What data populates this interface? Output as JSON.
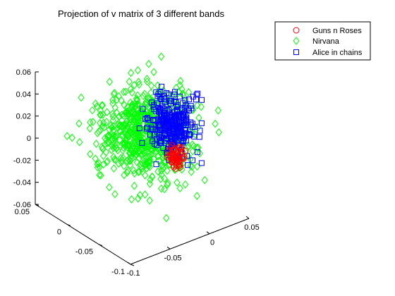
{
  "chart_data": {
    "type": "scatter",
    "title": "Projection of v matrix of 3 different bands",
    "xlabel": "",
    "ylabel": "",
    "zlabel": "",
    "z_ticks": [
      "0.06",
      "0.04",
      "0.02",
      "0",
      "-0.02",
      "-0.04",
      "-0.06"
    ],
    "y_ticks": [
      "0.05",
      "0",
      "-0.05",
      "-0.1"
    ],
    "x_ticks": [
      "-0.1",
      "-0.05",
      "0",
      "0.05"
    ],
    "zlim": [
      -0.06,
      0.06
    ],
    "legend_position": "top-right",
    "grid": false,
    "series": [
      {
        "name": "Guns n Roses",
        "marker": "circle",
        "color": "#ff0000",
        "cluster_center": [
          0.005,
          -0.04,
          -0.015
        ],
        "spread": [
          0.004,
          0.004,
          0.006
        ],
        "count": 60
      },
      {
        "name": "Nirvana",
        "marker": "diamond",
        "color": "#00ff00",
        "cluster_center": [
          -0.01,
          -0.01,
          0.0
        ],
        "spread": [
          0.025,
          0.025,
          0.018
        ],
        "count": 700
      },
      {
        "name": "Alice in chains",
        "marker": "square",
        "color": "#0000ff",
        "cluster_center": [
          0.01,
          -0.03,
          0.01
        ],
        "spread": [
          0.01,
          0.012,
          0.012
        ],
        "count": 320
      }
    ]
  }
}
